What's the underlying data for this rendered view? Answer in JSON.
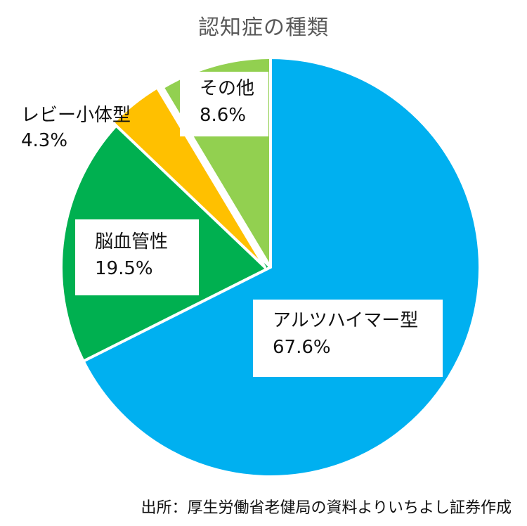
{
  "chart_data": {
    "type": "pie",
    "title": "認知症の種類",
    "slices": [
      {
        "label": "アルツハイマー型",
        "value": 67.6,
        "value_label": "67.6%",
        "color": "#00B0F0"
      },
      {
        "label": "脳血管性",
        "value": 19.5,
        "value_label": "19.5%",
        "color": "#00B050"
      },
      {
        "label": "レビー小体型",
        "value": 4.3,
        "value_label": "4.3%",
        "color": "#FFC000"
      },
      {
        "label": "その他",
        "value": 8.6,
        "value_label": "8.6%",
        "color": "#92D050"
      }
    ],
    "start_angle_deg": 0,
    "direction": "clockwise",
    "slice_border_color": "#FFFFFF",
    "source": "出所：厚生労働省老健局の資料よりいちよし証券作成"
  }
}
